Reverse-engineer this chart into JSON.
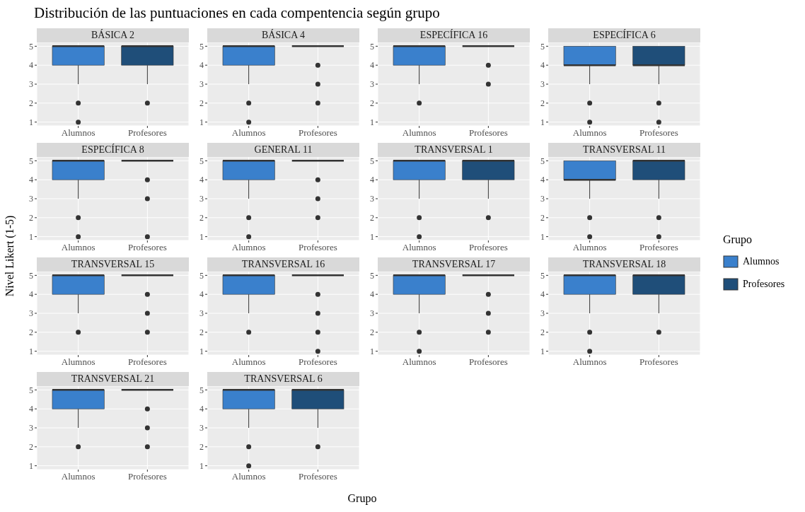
{
  "chart_data": [
    {
      "type": "box",
      "title": "BÁSICA 2",
      "annotations": [
        "Distribución de las puntuaciones en cada compentencia según grupo"
      ],
      "legend": "right",
      "legend_title": "Grupo",
      "categories": [
        "Alumnos",
        "Profesores"
      ],
      "series": [
        {
          "name": "Alumnos",
          "color": "#3a80cc",
          "boxes": [
            {
              "low": 3,
              "q1": 4,
              "median": 5,
              "q3": 5,
              "high": 5,
              "outliers": [
                2,
                1
              ]
            },
            null
          ]
        },
        {
          "name": "Profesores",
          "color": "#1f4e79",
          "boxes": [
            null,
            {
              "low": 3,
              "q1": 4,
              "median": 5,
              "q3": 5,
              "high": 5,
              "outliers": [
                2
              ]
            }
          ]
        }
      ],
      "ylim": [
        0.8,
        5.2
      ],
      "yticks": [
        1,
        2,
        3,
        4,
        5
      ],
      "grid": true
    },
    {
      "type": "box",
      "title": "BÁSICA 4",
      "categories": [
        "Alumnos",
        "Profesores"
      ],
      "colors": [
        "#3a80cc",
        "#333333"
      ],
      "boxes": [
        {
          "low": 3,
          "q1": 4,
          "median": 5,
          "q3": 5,
          "high": 5,
          "outliers": [
            2,
            1
          ]
        },
        {
          "low": 5,
          "q1": 5,
          "median": 5,
          "q3": 5,
          "high": 5,
          "outliers": [
            4,
            3,
            2
          ]
        }
      ],
      "ylim": [
        0.8,
        5.2
      ],
      "yticks": [
        1,
        2,
        3,
        4,
        5
      ],
      "grid": true
    },
    {
      "type": "box",
      "title": "ESPECÍFICA 16",
      "categories": [
        "Alumnos",
        "Profesores"
      ],
      "colors": [
        "#3a80cc",
        "#333333"
      ],
      "boxes": [
        {
          "low": 3,
          "q1": 4,
          "median": 5,
          "q3": 5,
          "high": 5,
          "outliers": [
            2
          ]
        },
        {
          "low": 5,
          "q1": 5,
          "median": 5,
          "q3": 5,
          "high": 5,
          "outliers": [
            4,
            3
          ]
        }
      ],
      "ylim": [
        0.8,
        5.2
      ],
      "yticks": [
        1,
        2,
        3,
        4,
        5
      ],
      "grid": true
    },
    {
      "type": "box",
      "title": "ESPECÍFICA 6",
      "categories": [
        "Alumnos",
        "Profesores"
      ],
      "colors": [
        "#3a80cc",
        "#1f4e79"
      ],
      "boxes": [
        {
          "low": 3,
          "q1": 4,
          "median": 4,
          "q3": 5,
          "high": 5,
          "outliers": [
            2,
            1
          ]
        },
        {
          "low": 3,
          "q1": 4,
          "median": 4,
          "q3": 5,
          "high": 5,
          "outliers": [
            2,
            1
          ]
        }
      ],
      "ylim": [
        0.8,
        5.2
      ],
      "yticks": [
        1,
        2,
        3,
        4,
        5
      ],
      "grid": true
    },
    {
      "type": "box",
      "title": "ESPECÍFICA 8",
      "categories": [
        "Alumnos",
        "Profesores"
      ],
      "colors": [
        "#3a80cc",
        "#333333"
      ],
      "boxes": [
        {
          "low": 3,
          "q1": 4,
          "median": 5,
          "q3": 5,
          "high": 5,
          "outliers": [
            2,
            1
          ]
        },
        {
          "low": 5,
          "q1": 5,
          "median": 5,
          "q3": 5,
          "high": 5,
          "outliers": [
            4,
            3,
            1
          ]
        }
      ],
      "ylim": [
        0.8,
        5.2
      ],
      "yticks": [
        1,
        2,
        3,
        4,
        5
      ],
      "grid": true
    },
    {
      "type": "box",
      "title": "GENERAL 11",
      "categories": [
        "Alumnos",
        "Profesores"
      ],
      "colors": [
        "#3a80cc",
        "#333333"
      ],
      "boxes": [
        {
          "low": 3,
          "q1": 4,
          "median": 5,
          "q3": 5,
          "high": 5,
          "outliers": [
            2,
            1
          ]
        },
        {
          "low": 5,
          "q1": 5,
          "median": 5,
          "q3": 5,
          "high": 5,
          "outliers": [
            4,
            3,
            2
          ]
        }
      ],
      "ylim": [
        0.8,
        5.2
      ],
      "yticks": [
        1,
        2,
        3,
        4,
        5
      ],
      "grid": true
    },
    {
      "type": "box",
      "title": "TRANSVERSAL 1",
      "categories": [
        "Alumnos",
        "Profesores"
      ],
      "colors": [
        "#3a80cc",
        "#1f4e79"
      ],
      "boxes": [
        {
          "low": 3,
          "q1": 4,
          "median": 5,
          "q3": 5,
          "high": 5,
          "outliers": [
            2,
            1
          ]
        },
        {
          "low": 3,
          "q1": 4,
          "median": 5,
          "q3": 5,
          "high": 5,
          "outliers": [
            2
          ]
        }
      ],
      "ylim": [
        0.8,
        5.2
      ],
      "yticks": [
        1,
        2,
        3,
        4,
        5
      ],
      "grid": true
    },
    {
      "type": "box",
      "title": "TRANSVERSAL 11",
      "categories": [
        "Alumnos",
        "Profesores"
      ],
      "colors": [
        "#3a80cc",
        "#1f4e79"
      ],
      "boxes": [
        {
          "low": 3,
          "q1": 4,
          "median": 4,
          "q3": 5,
          "high": 5,
          "outliers": [
            2,
            1
          ]
        },
        {
          "low": 3,
          "q1": 4,
          "median": 5,
          "q3": 5,
          "high": 5,
          "outliers": [
            2,
            1
          ]
        }
      ],
      "ylim": [
        0.8,
        5.2
      ],
      "yticks": [
        1,
        2,
        3,
        4,
        5
      ],
      "grid": true
    },
    {
      "type": "box",
      "title": "TRANSVERSAL 15",
      "ylabel": "Nivel Likert (1-5)",
      "categories": [
        "Alumnos",
        "Profesores"
      ],
      "colors": [
        "#3a80cc",
        "#333333"
      ],
      "boxes": [
        {
          "low": 3,
          "q1": 4,
          "median": 5,
          "q3": 5,
          "high": 5,
          "outliers": [
            2
          ]
        },
        {
          "low": 5,
          "q1": 5,
          "median": 5,
          "q3": 5,
          "high": 5,
          "outliers": [
            4,
            3,
            2
          ]
        }
      ],
      "ylim": [
        0.8,
        5.2
      ],
      "yticks": [
        1,
        2,
        3,
        4,
        5
      ],
      "grid": true
    },
    {
      "type": "box",
      "title": "TRANSVERSAL 16",
      "categories": [
        "Alumnos",
        "Profesores"
      ],
      "colors": [
        "#3a80cc",
        "#333333"
      ],
      "boxes": [
        {
          "low": 3,
          "q1": 4,
          "median": 5,
          "q3": 5,
          "high": 5,
          "outliers": [
            2
          ]
        },
        {
          "low": 5,
          "q1": 5,
          "median": 5,
          "q3": 5,
          "high": 5,
          "outliers": [
            4,
            3,
            2,
            1
          ]
        }
      ],
      "ylim": [
        0.8,
        5.2
      ],
      "yticks": [
        1,
        2,
        3,
        4,
        5
      ],
      "grid": true
    },
    {
      "type": "box",
      "title": "TRANSVERSAL 17",
      "categories": [
        "Alumnos",
        "Profesores"
      ],
      "colors": [
        "#3a80cc",
        "#333333"
      ],
      "boxes": [
        {
          "low": 3,
          "q1": 4,
          "median": 5,
          "q3": 5,
          "high": 5,
          "outliers": [
            2,
            1
          ]
        },
        {
          "low": 5,
          "q1": 5,
          "median": 5,
          "q3": 5,
          "high": 5,
          "outliers": [
            4,
            3,
            2
          ]
        }
      ],
      "ylim": [
        0.8,
        5.2
      ],
      "yticks": [
        1,
        2,
        3,
        4,
        5
      ],
      "grid": true
    },
    {
      "type": "box",
      "title": "TRANSVERSAL 18",
      "categories": [
        "Alumnos",
        "Profesores"
      ],
      "colors": [
        "#3a80cc",
        "#1f4e79"
      ],
      "boxes": [
        {
          "low": 3,
          "q1": 4,
          "median": 5,
          "q3": 5,
          "high": 5,
          "outliers": [
            2,
            1
          ]
        },
        {
          "low": 3,
          "q1": 4,
          "median": 5,
          "q3": 5,
          "high": 5,
          "outliers": [
            2
          ]
        }
      ],
      "ylim": [
        0.8,
        5.2
      ],
      "yticks": [
        1,
        2,
        3,
        4,
        5
      ],
      "grid": true
    },
    {
      "type": "box",
      "title": "TRANSVERSAL 21",
      "categories": [
        "Alumnos",
        "Profesores"
      ],
      "colors": [
        "#3a80cc",
        "#333333"
      ],
      "boxes": [
        {
          "low": 3,
          "q1": 4,
          "median": 5,
          "q3": 5,
          "high": 5,
          "outliers": [
            2
          ]
        },
        {
          "low": 5,
          "q1": 5,
          "median": 5,
          "q3": 5,
          "high": 5,
          "outliers": [
            4,
            3,
            2
          ]
        }
      ],
      "ylim": [
        0.8,
        5.2
      ],
      "yticks": [
        1,
        2,
        3,
        4,
        5
      ],
      "grid": true
    },
    {
      "type": "box",
      "title": "TRANSVERSAL 6",
      "xlabel": "Grupo",
      "categories": [
        "Alumnos",
        "Profesores"
      ],
      "colors": [
        "#3a80cc",
        "#1f4e79"
      ],
      "boxes": [
        {
          "low": 3,
          "q1": 4,
          "median": 5,
          "q3": 5,
          "high": 5,
          "outliers": [
            2,
            1
          ]
        },
        {
          "low": 3,
          "q1": 4,
          "median": 5,
          "q3": 5,
          "high": 5,
          "outliers": [
            2
          ]
        }
      ],
      "ylim": [
        0.8,
        5.2
      ],
      "yticks": [
        1,
        2,
        3,
        4,
        5
      ],
      "grid": true
    }
  ]
}
